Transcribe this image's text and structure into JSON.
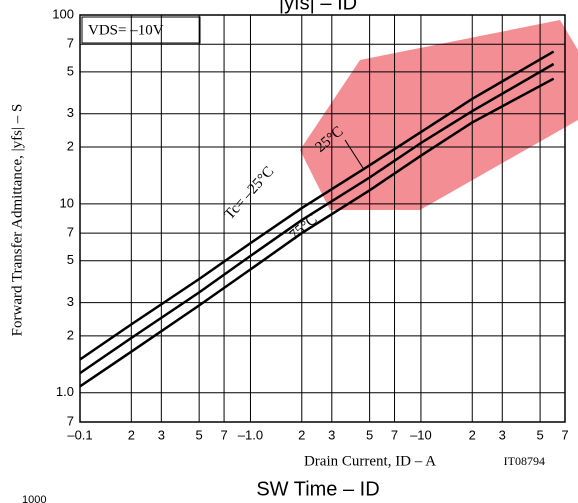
{
  "chart_data": {
    "type": "line",
    "title": "|yfs| – ID",
    "footer_title": "SW Time – ID",
    "footer_number": "1000",
    "x_label": "Drain Current, ID – A",
    "y_label": "Forward Transfer Admittance, |yfs| – S",
    "code": "IT08794",
    "condition": "VDS= –10V",
    "log_x": true,
    "log_y": true,
    "grid": true,
    "xlim": [
      0.1,
      70
    ],
    "ylim": [
      0.7,
      100
    ],
    "xticks": [
      {
        "value": 0.1,
        "label": "–0.1"
      },
      {
        "value": 0.2,
        "label": "2"
      },
      {
        "value": 0.3,
        "label": "3"
      },
      {
        "value": 0.5,
        "label": "5"
      },
      {
        "value": 0.7,
        "label": "7"
      },
      {
        "value": 1,
        "label": "–1.0"
      },
      {
        "value": 2,
        "label": "2"
      },
      {
        "value": 3,
        "label": "3"
      },
      {
        "value": 5,
        "label": "5"
      },
      {
        "value": 7,
        "label": "7"
      },
      {
        "value": 10,
        "label": "–10"
      },
      {
        "value": 20,
        "label": "2"
      },
      {
        "value": 30,
        "label": "3"
      },
      {
        "value": 50,
        "label": "5"
      },
      {
        "value": 70,
        "label": "7"
      }
    ],
    "yticks": [
      {
        "value": 0.7,
        "label": "7"
      },
      {
        "value": 1,
        "label": "1.0"
      },
      2,
      3,
      5,
      7,
      10,
      {
        "value": 20,
        "label": "2"
      },
      {
        "value": 30,
        "label": "3"
      },
      {
        "value": 50,
        "label": "5"
      },
      {
        "value": 70,
        "label": "7"
      },
      100
    ],
    "x": [
      0.1,
      0.2,
      0.5,
      1,
      2,
      5,
      10,
      20,
      60
    ],
    "series": [
      {
        "name": "Tc= –25°C",
        "color": "#000000",
        "values": [
          1.5,
          2.3,
          4.0,
          6.2,
          9.5,
          16,
          24,
          36,
          64
        ]
      },
      {
        "name": "25°C",
        "color": "#000000",
        "values": [
          1.27,
          1.95,
          3.4,
          5.3,
          8.2,
          13.8,
          21,
          31,
          55
        ]
      },
      {
        "name": "75°C",
        "color": "#000000",
        "values": [
          1.08,
          1.65,
          2.9,
          4.5,
          7.0,
          11.8,
          18,
          27,
          46
        ]
      }
    ]
  }
}
